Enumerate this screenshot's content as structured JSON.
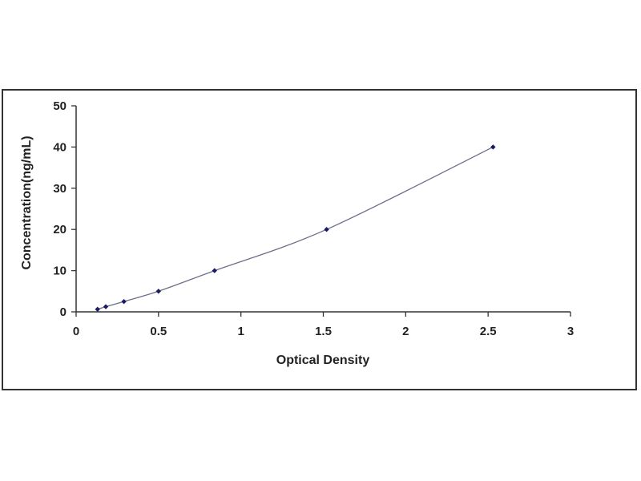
{
  "chart_data": {
    "type": "scatter",
    "title": "",
    "xlabel": "Optical Density",
    "ylabel": "Concentration(ng/mL)",
    "xlim": [
      0,
      3
    ],
    "ylim": [
      0,
      50
    ],
    "x_ticks": [
      "0",
      "0.5",
      "1",
      "1.5",
      "2",
      "2.5",
      "3"
    ],
    "y_ticks": [
      "0",
      "10",
      "20",
      "30",
      "40",
      "50"
    ],
    "grid": false,
    "legend": "none",
    "colors": {
      "marker": "#1a1a66",
      "curve": "#6e6e8c",
      "axis": "#333333"
    },
    "points": [
      {
        "x": 0.13,
        "y": 0.625
      },
      {
        "x": 0.18,
        "y": 1.25
      },
      {
        "x": 0.29,
        "y": 2.5
      },
      {
        "x": 0.5,
        "y": 5
      },
      {
        "x": 0.84,
        "y": 10
      },
      {
        "x": 1.52,
        "y": 20
      },
      {
        "x": 2.53,
        "y": 40
      }
    ]
  }
}
